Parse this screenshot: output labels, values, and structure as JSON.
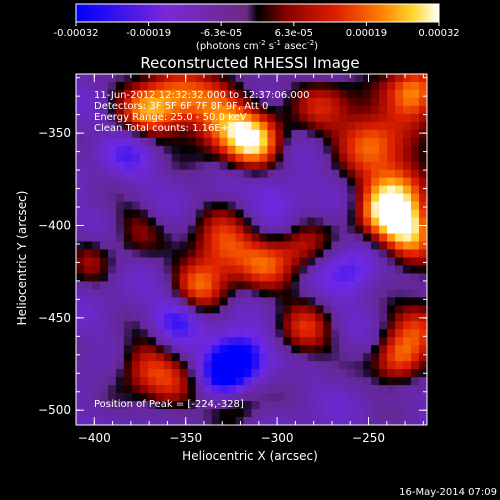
{
  "chart_data": {
    "type": "heatmap",
    "title": "Reconstructed RHESSI Image",
    "xlabel": "Heliocentric X (arcsec)",
    "ylabel": "Heliocentric Y (arcsec)",
    "xlim": [
      -410,
      -218
    ],
    "ylim": [
      -508,
      -318
    ],
    "xticks": [
      -400,
      -350,
      -300,
      -250
    ],
    "yticks": [
      -350,
      -400,
      -450,
      -500
    ],
    "colorbar": {
      "min": -0.00032,
      "max": 0.00032,
      "ticks": [
        "-0.00032",
        "-0.00019",
        "-6.3e-05",
        "6.3e-05",
        "0.00019",
        "0.00032"
      ],
      "unit_prefix": "(photons cm",
      "unit_sup1": "-2",
      "unit_mid": " s",
      "unit_sup2": "-1",
      "unit_mid2": " asec",
      "unit_sup3": "-2",
      "unit_suffix": ")"
    },
    "info_lines": [
      "11-Jun-2012 12:32:32.000 to 12:37:06.000",
      "Detectors: 3F 5F 6F 7F 8F 9F, Att 0",
      "Energy Range: 25.0 - 50.0 keV",
      "Clean     Total counts: 1.16E+04"
    ],
    "peak_label": "Position of Peak = [-224,-328]",
    "peak": [
      -224,
      -328
    ],
    "blobs": [
      {
        "x": -358,
        "y": -330,
        "amp": 0.00022,
        "r": 14
      },
      {
        "x": -373,
        "y": -338,
        "amp": 0.00018,
        "r": 12
      },
      {
        "x": -330,
        "y": -342,
        "amp": 0.00026,
        "r": 14
      },
      {
        "x": -312,
        "y": -355,
        "amp": 0.00032,
        "r": 11
      },
      {
        "x": -275,
        "y": -333,
        "amp": 0.00017,
        "r": 12
      },
      {
        "x": -249,
        "y": -353,
        "amp": 0.00027,
        "r": 13
      },
      {
        "x": -224,
        "y": -328,
        "amp": 0.00032,
        "r": 11
      },
      {
        "x": -231,
        "y": -378,
        "amp": 0.00024,
        "r": 12
      },
      {
        "x": -228,
        "y": -405,
        "amp": 0.00032,
        "r": 11
      },
      {
        "x": -243,
        "y": -392,
        "amp": 0.00029,
        "r": 11
      },
      {
        "x": -222,
        "y": -452,
        "amp": 0.0002,
        "r": 12
      },
      {
        "x": -234,
        "y": -474,
        "amp": 0.00024,
        "r": 10
      },
      {
        "x": -330,
        "y": -410,
        "amp": 0.00024,
        "r": 12
      },
      {
        "x": -306,
        "y": -422,
        "amp": 0.0002,
        "r": 12
      },
      {
        "x": -343,
        "y": -432,
        "amp": 0.00022,
        "r": 11
      },
      {
        "x": -286,
        "y": -410,
        "amp": 0.00015,
        "r": 10
      },
      {
        "x": -285,
        "y": -458,
        "amp": 0.0002,
        "r": 11
      },
      {
        "x": -373,
        "y": -476,
        "amp": 0.0002,
        "r": 11
      },
      {
        "x": -377,
        "y": -402,
        "amp": 0.00012,
        "r": 10
      },
      {
        "x": -402,
        "y": -418,
        "amp": 0.00012,
        "r": 9
      },
      {
        "x": -358,
        "y": -490,
        "amp": 0.00016,
        "r": 10
      },
      {
        "x": -320,
        "y": -495,
        "amp": 0.00011,
        "r": 10
      },
      {
        "x": -320,
        "y": -471,
        "amp": -0.0003,
        "r": 10
      },
      {
        "x": -330,
        "y": -480,
        "amp": -0.00022,
        "r": 8
      },
      {
        "x": -355,
        "y": -450,
        "amp": -0.00016,
        "r": 9
      },
      {
        "x": -380,
        "y": -360,
        "amp": -0.00012,
        "r": 10
      },
      {
        "x": -260,
        "y": -425,
        "amp": -0.00014,
        "r": 10
      },
      {
        "x": -300,
        "y": -385,
        "amp": -0.0001,
        "r": 11
      }
    ],
    "grid": false
  },
  "footer": {
    "timestamp": "16-May-2014 07:09"
  }
}
